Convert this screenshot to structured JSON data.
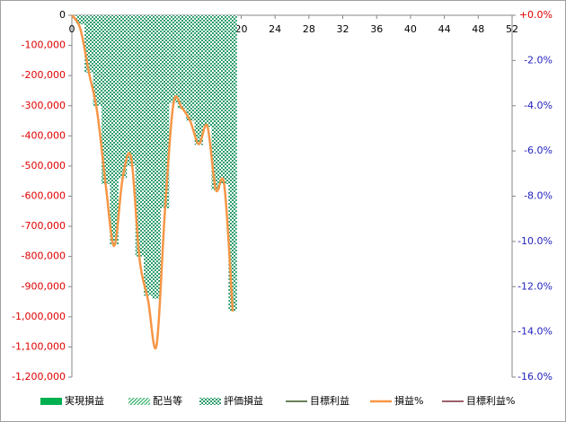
{
  "chart_data": {
    "type": "bar_line",
    "x": [
      0,
      1,
      2,
      3,
      4,
      5,
      6,
      7,
      8,
      9,
      10,
      11,
      12,
      13,
      14,
      15,
      16,
      17,
      18,
      19
    ],
    "series": [
      {
        "name": "実現損益",
        "color": "#00b050",
        "type": "bar",
        "fill": "solid"
      },
      {
        "name": "配当等",
        "color": "#3cb371",
        "type": "bar",
        "fill": "hatch"
      },
      {
        "name": "評価損益",
        "color": "#2e9e6e",
        "type": "bar",
        "fill": "dots",
        "values": [
          0,
          -30000,
          -190000,
          -300000,
          -560000,
          -760000,
          -540000,
          -500000,
          -800000,
          -930000,
          -940000,
          -640000,
          -290000,
          -310000,
          -350000,
          -430000,
          -370000,
          -580000,
          -560000,
          -980000
        ]
      },
      {
        "name": "目標利益",
        "color": "#375623",
        "type": "line"
      },
      {
        "name": "損益%",
        "color": "#f79646",
        "type": "line",
        "axis": "y2",
        "values": [
          0,
          -0.6,
          -2.5,
          -4.3,
          -7.5,
          -10.2,
          -7.2,
          -6.3,
          -10.8,
          -12.6,
          -14.6,
          -8.6,
          -3.9,
          -4.1,
          -4.7,
          -5.7,
          -4.9,
          -7.7,
          -7.5,
          -13.1
        ]
      },
      {
        "name": "目標利益%",
        "color": "#7b2c3a",
        "type": "line",
        "axis": "y2"
      }
    ],
    "xlim": [
      0,
      52
    ],
    "xticks": [
      0,
      4,
      8,
      12,
      16,
      20,
      24,
      28,
      32,
      36,
      40,
      44,
      48,
      52
    ],
    "ylim": [
      -1200000,
      0
    ],
    "yticks": [
      0,
      {
        "value": -100000,
        "label": "-100,000"
      },
      {
        "value": -200000,
        "label": "-200,000"
      },
      {
        "value": -300000,
        "label": "-300,000"
      },
      {
        "value": -400000,
        "label": "-400,000"
      },
      {
        "value": -500000,
        "label": "-500,000"
      },
      {
        "value": -600000,
        "label": "-600,000"
      },
      {
        "value": -700000,
        "label": "-700,000"
      },
      {
        "value": -800000,
        "label": "-800,000"
      },
      {
        "value": -900000,
        "label": "-900,000"
      },
      {
        "value": -1000000,
        "label": "-1,000,000"
      },
      {
        "value": -1100000,
        "label": "-1,100,000"
      },
      {
        "value": -1200000,
        "label": "-1,200,000"
      }
    ],
    "y2lim": [
      -16,
      0
    ],
    "y2ticks": [
      {
        "value": 0,
        "label": "+0.0%"
      },
      {
        "value": -2,
        "label": "-2.0%"
      },
      {
        "value": -4,
        "label": "-4.0%"
      },
      {
        "value": -6,
        "label": "-6.0%"
      },
      {
        "value": -8,
        "label": "-8.0%"
      },
      {
        "value": -10,
        "label": "-10.0%"
      },
      {
        "value": -12,
        "label": "-12.0%"
      },
      {
        "value": -14,
        "label": "-14.0%"
      },
      {
        "value": -16,
        "label": "-16.0%"
      }
    ],
    "ytick_colors": {
      "zero": "#000000",
      "negative": "#e00000"
    },
    "y2tick_colors": {
      "zero": "#e00000",
      "negative": "#1f1fbf"
    },
    "grid": false,
    "legend": "bottom"
  }
}
